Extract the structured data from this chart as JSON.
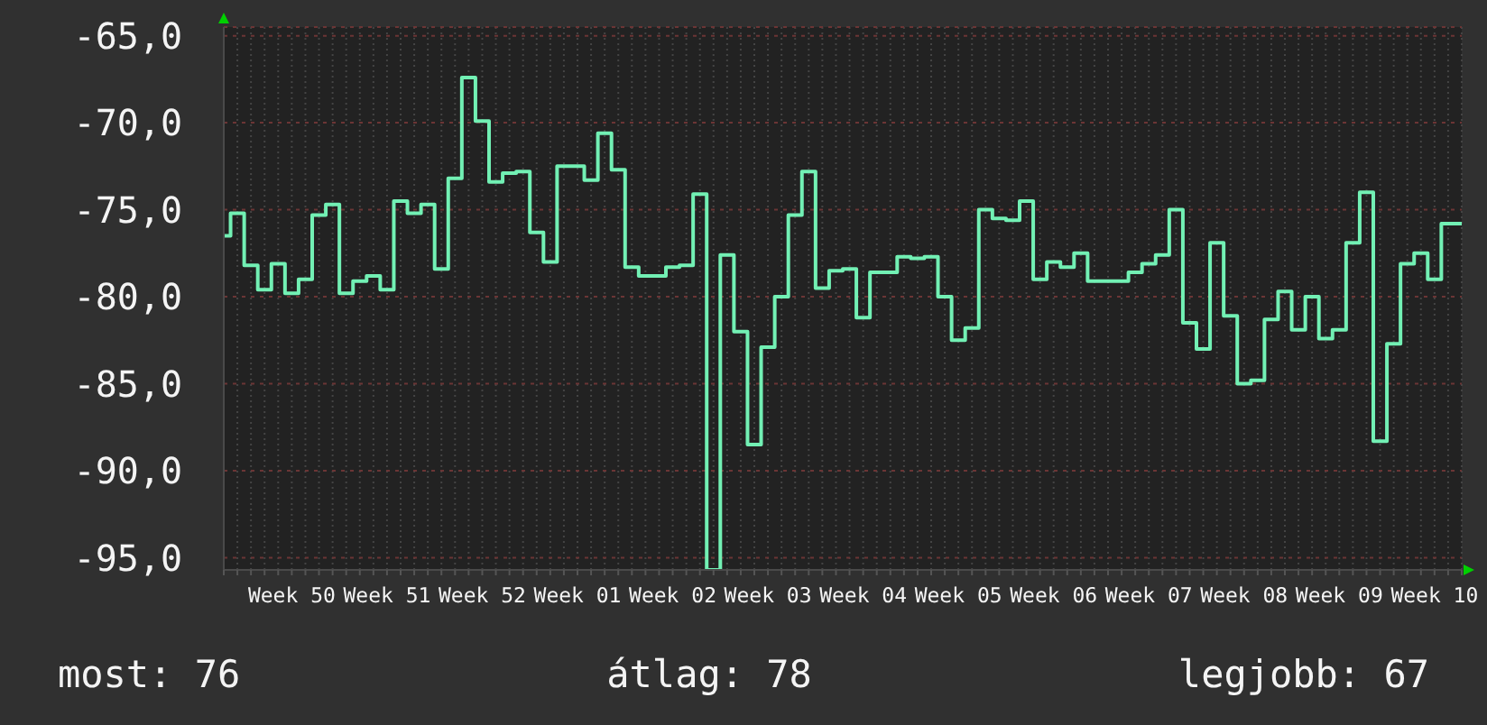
{
  "chart_data": {
    "type": "step",
    "categories": [
      null,
      null,
      null,
      null,
      null,
      "Week 50",
      null,
      null,
      null,
      null,
      null,
      null,
      "Week 51",
      null,
      null,
      null,
      null,
      null,
      null,
      "Week 52",
      null,
      null,
      null,
      null,
      null,
      null,
      "Week 01",
      null,
      null,
      null,
      null,
      null,
      null,
      "Week 02",
      null,
      null,
      null,
      null,
      null,
      null,
      "Week 03",
      null,
      null,
      null,
      null,
      null,
      null,
      "Week 04",
      null,
      null,
      null,
      null,
      null,
      null,
      "Week 05",
      null,
      null,
      null,
      null,
      null,
      null,
      "Week 06",
      null,
      null,
      null,
      null,
      null,
      null,
      "Week 07",
      null,
      null,
      null,
      null,
      null,
      null,
      "Week 08",
      null,
      null,
      null,
      null,
      null,
      null,
      "Week 09",
      null,
      null,
      null,
      null,
      null,
      null,
      "Week 10",
      null,
      null
    ],
    "values": [
      -76.5,
      -75.2,
      -78.2,
      -79.6,
      -78.1,
      -79.8,
      -79.0,
      -75.3,
      -74.7,
      -79.8,
      -79.1,
      -78.8,
      -79.6,
      -74.5,
      -75.2,
      -74.7,
      -78.4,
      -73.2,
      -67.4,
      -69.9,
      -73.4,
      -72.9,
      -72.8,
      -76.3,
      -78.0,
      -72.5,
      -72.5,
      -73.3,
      -70.6,
      -72.7,
      -78.3,
      -78.8,
      -78.8,
      -78.3,
      -78.2,
      -74.1,
      -95.7,
      -77.6,
      -82.0,
      -88.5,
      -82.9,
      -80.0,
      -75.3,
      -72.8,
      -79.5,
      -78.5,
      -78.4,
      -81.2,
      -78.6,
      -78.6,
      -77.7,
      -77.8,
      -77.7,
      -80.0,
      -82.5,
      -81.8,
      -75.0,
      -75.5,
      -75.6,
      -74.5,
      -79.0,
      -78.0,
      -78.3,
      -77.5,
      -79.1,
      -79.1,
      -79.1,
      -78.6,
      -78.1,
      -77.6,
      -75.0,
      -81.5,
      -83.0,
      -76.9,
      -81.1,
      -85.0,
      -84.8,
      -81.3,
      -79.7,
      -81.9,
      -80.0,
      -82.4,
      -81.9,
      -76.9,
      -74.0,
      -88.3,
      -82.7,
      -78.1,
      -77.5,
      -79.0,
      -75.8,
      -75.8
    ],
    "color": "#72f0b4",
    "ylim": [
      -95.7,
      -64.5
    ],
    "yticks": [
      {
        "value": -95,
        "label": "-95,0"
      },
      {
        "value": -90,
        "label": "-90,0"
      },
      {
        "value": -85,
        "label": "-85,0"
      },
      {
        "value": -80,
        "label": "-80,0"
      },
      {
        "value": -75,
        "label": "-75,0"
      },
      {
        "value": -70,
        "label": "-70,0"
      },
      {
        "value": -65,
        "label": "-65,0"
      }
    ],
    "grid": true,
    "annotations": [
      "most: 76",
      "átlag: 78",
      "legjobb: 67"
    ]
  }
}
